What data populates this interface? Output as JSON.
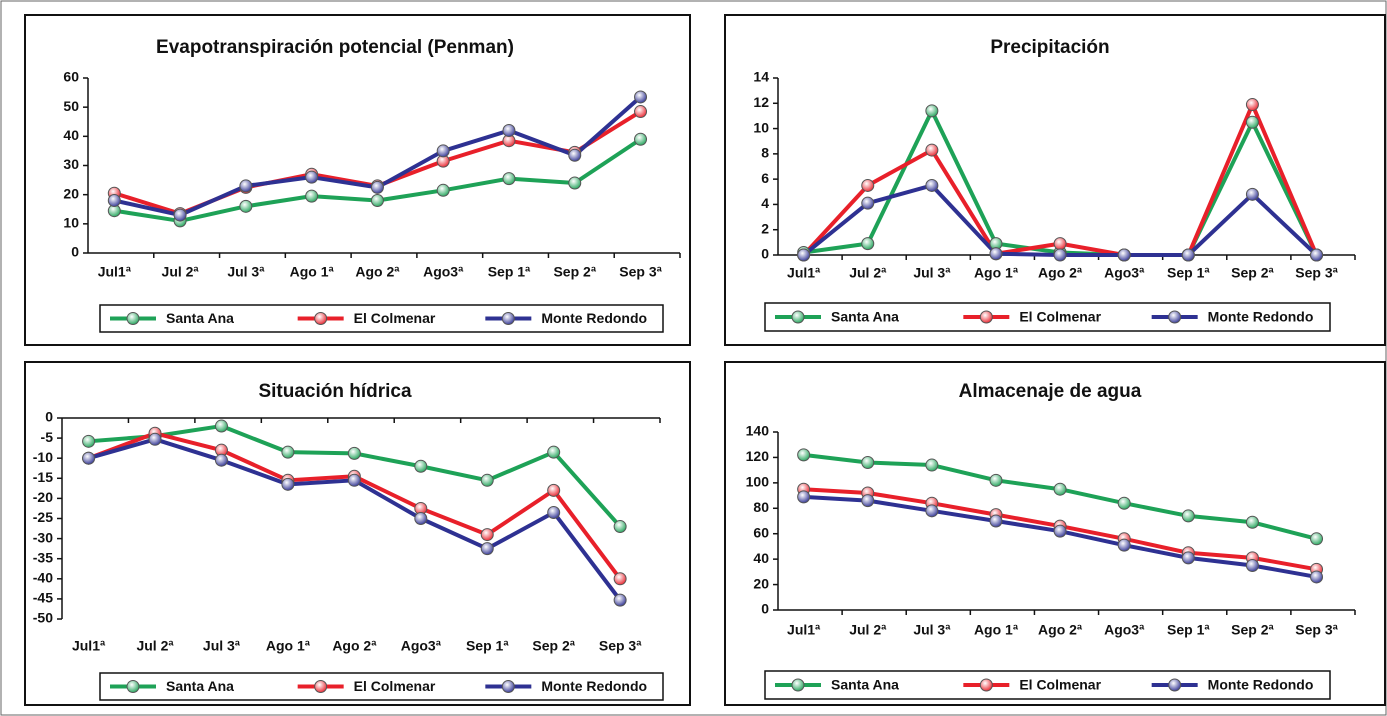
{
  "chart_data": [
    {
      "type": "line",
      "title": "Evapotranspiración potencial (Penman)",
      "categories": [
        "Jul1ª",
        "Jul 2ª",
        "Jul 3ª",
        "Ago 1ª",
        "Ago 2ª",
        "Ago3ª",
        "Sep 1ª",
        "Sep 2ª",
        "Sep 3ª"
      ],
      "series": [
        {
          "name": "Santa Ana",
          "color": "#1ea257",
          "values": [
            14.5,
            11,
            16,
            19.5,
            18,
            21.5,
            25.5,
            24,
            39
          ]
        },
        {
          "name": "El Colmenar",
          "color": "#e8202a",
          "values": [
            20.5,
            13.5,
            22.5,
            27,
            23,
            31.5,
            38.5,
            34.5,
            48.5
          ]
        },
        {
          "name": "Monte Redondo",
          "color": "#2e3192",
          "values": [
            18,
            13,
            23,
            26,
            22.5,
            35,
            42,
            33.5,
            53.5
          ]
        }
      ],
      "ylim": [
        0,
        60
      ],
      "yticks": [
        0,
        10,
        20,
        30,
        40,
        50,
        60
      ],
      "grid": false,
      "legend": "bottom"
    },
    {
      "type": "line",
      "title": "Precipitación",
      "categories": [
        "Jul1ª",
        "Jul 2ª",
        "Jul 3ª",
        "Ago 1ª",
        "Ago 2ª",
        "Ago3ª",
        "Sep 1ª",
        "Sep 2ª",
        "Sep 3ª"
      ],
      "series": [
        {
          "name": "Santa Ana",
          "color": "#1ea257",
          "values": [
            0.2,
            0.9,
            11.4,
            0.9,
            0.2,
            0,
            0,
            10.5,
            0
          ]
        },
        {
          "name": "El Colmenar",
          "color": "#e8202a",
          "values": [
            0,
            5.5,
            8.3,
            0.1,
            0.9,
            0,
            0,
            11.9,
            0
          ]
        },
        {
          "name": "Monte Redondo",
          "color": "#2e3192",
          "values": [
            0,
            4.1,
            5.5,
            0.1,
            0,
            0,
            0,
            4.8,
            0
          ]
        }
      ],
      "ylim": [
        0,
        14
      ],
      "yticks": [
        0,
        2,
        4,
        6,
        8,
        10,
        12,
        14
      ],
      "grid": false,
      "legend": "bottom"
    },
    {
      "type": "line",
      "title": "Situación hídrica",
      "categories": [
        "Jul1ª",
        "Jul 2ª",
        "Jul 3ª",
        "Ago 1ª",
        "Ago 2ª",
        "Ago3ª",
        "Sep 1ª",
        "Sep 2ª",
        "Sep 3ª"
      ],
      "series": [
        {
          "name": "Santa Ana",
          "color": "#1ea257",
          "values": [
            -5.8,
            -4.5,
            -2,
            -8.5,
            -8.8,
            -12,
            -15.5,
            -8.5,
            -27
          ]
        },
        {
          "name": "El Colmenar",
          "color": "#e8202a",
          "values": [
            -10,
            -3.8,
            -8,
            -15.5,
            -14.5,
            -22.5,
            -29,
            -18,
            -40
          ]
        },
        {
          "name": "Monte Redondo",
          "color": "#2e3192",
          "values": [
            -10,
            -5.3,
            -10.5,
            -16.5,
            -15.5,
            -25,
            -32.5,
            -23.5,
            -45.3
          ]
        }
      ],
      "ylim": [
        -50,
        0
      ],
      "yticks": [
        0,
        -5,
        -10,
        -15,
        -20,
        -25,
        -30,
        -35,
        -40,
        -45,
        -50
      ],
      "grid": false,
      "legend": "bottom"
    },
    {
      "type": "line",
      "title": "Almacenaje de agua",
      "categories": [
        "Jul1ª",
        "Jul 2ª",
        "Jul 3ª",
        "Ago 1ª",
        "Ago 2ª",
        "Ago3ª",
        "Sep 1ª",
        "Sep 2ª",
        "Sep 3ª"
      ],
      "series": [
        {
          "name": "Santa Ana",
          "color": "#1ea257",
          "values": [
            122,
            116,
            114,
            102,
            95,
            84,
            74,
            69,
            56
          ]
        },
        {
          "name": "El Colmenar",
          "color": "#e8202a",
          "values": [
            95,
            92,
            84,
            75,
            66,
            56,
            45,
            41,
            32
          ]
        },
        {
          "name": "Monte Redondo",
          "color": "#2e3192",
          "values": [
            89,
            86,
            78,
            70,
            62,
            51,
            41,
            35,
            26
          ]
        }
      ],
      "ylim": [
        0,
        140
      ],
      "yticks": [
        0,
        20,
        40,
        60,
        80,
        100,
        120,
        140
      ],
      "grid": false,
      "legend": "bottom"
    }
  ]
}
